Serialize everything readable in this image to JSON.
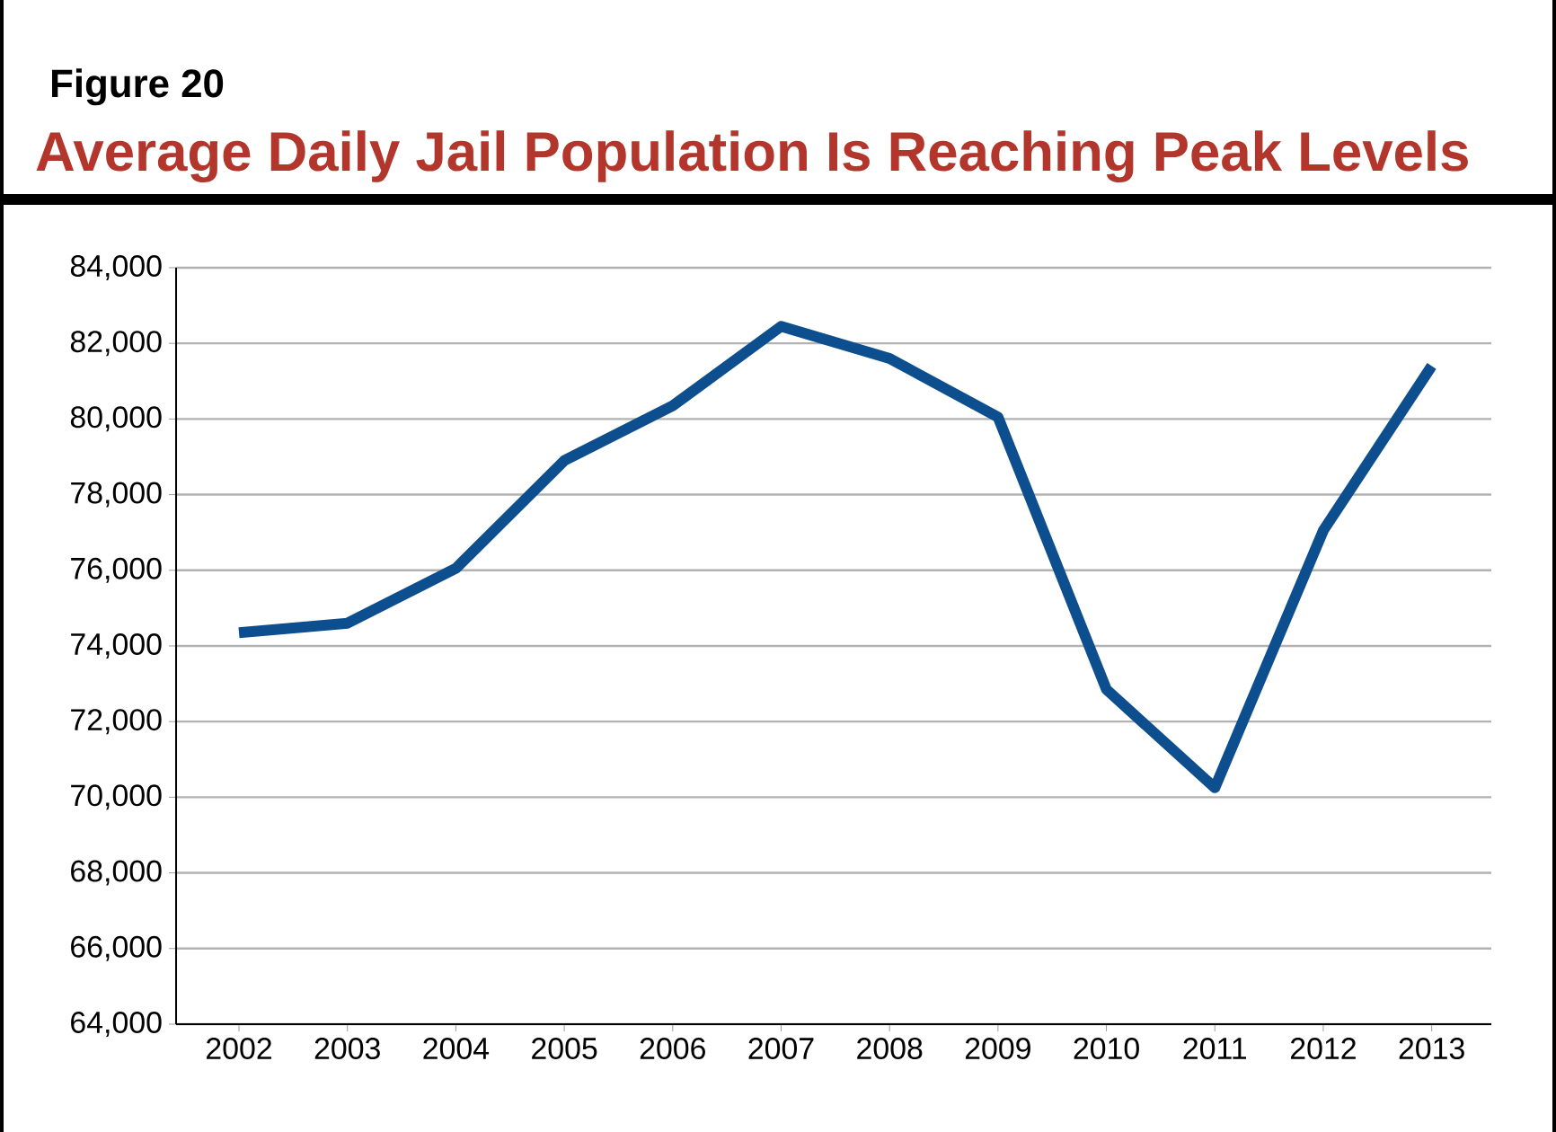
{
  "chart_data": {
    "type": "line",
    "title": "Average Daily Jail Population Is Reaching Peak Levels",
    "annotations": [
      "Figure 20"
    ],
    "categories": [
      "2002",
      "2003",
      "2004",
      "2005",
      "2006",
      "2007",
      "2008",
      "2009",
      "2010",
      "2011",
      "2012",
      "2013"
    ],
    "series": [
      {
        "color": "#0d4e8e",
        "values": [
          74350,
          74600,
          76050,
          78900,
          80350,
          82450,
          81600,
          80050,
          72850,
          70250,
          77050,
          81400
        ]
      }
    ],
    "ylim": [
      64000,
      84000
    ],
    "yticks": [
      {
        "value": 64000,
        "label": "64,000"
      },
      {
        "value": 66000,
        "label": "66,000"
      },
      {
        "value": 68000,
        "label": "68,000"
      },
      {
        "value": 70000,
        "label": "70,000"
      },
      {
        "value": 72000,
        "label": "72,000"
      },
      {
        "value": 74000,
        "label": "74,000"
      },
      {
        "value": 76000,
        "label": "76,000"
      },
      {
        "value": 78000,
        "label": "78,000"
      },
      {
        "value": 80000,
        "label": "80,000"
      },
      {
        "value": 82000,
        "label": "82,000"
      },
      {
        "value": 84000,
        "label": "84,000"
      }
    ],
    "grid": "y",
    "marker": "none",
    "line_style": "solid"
  }
}
